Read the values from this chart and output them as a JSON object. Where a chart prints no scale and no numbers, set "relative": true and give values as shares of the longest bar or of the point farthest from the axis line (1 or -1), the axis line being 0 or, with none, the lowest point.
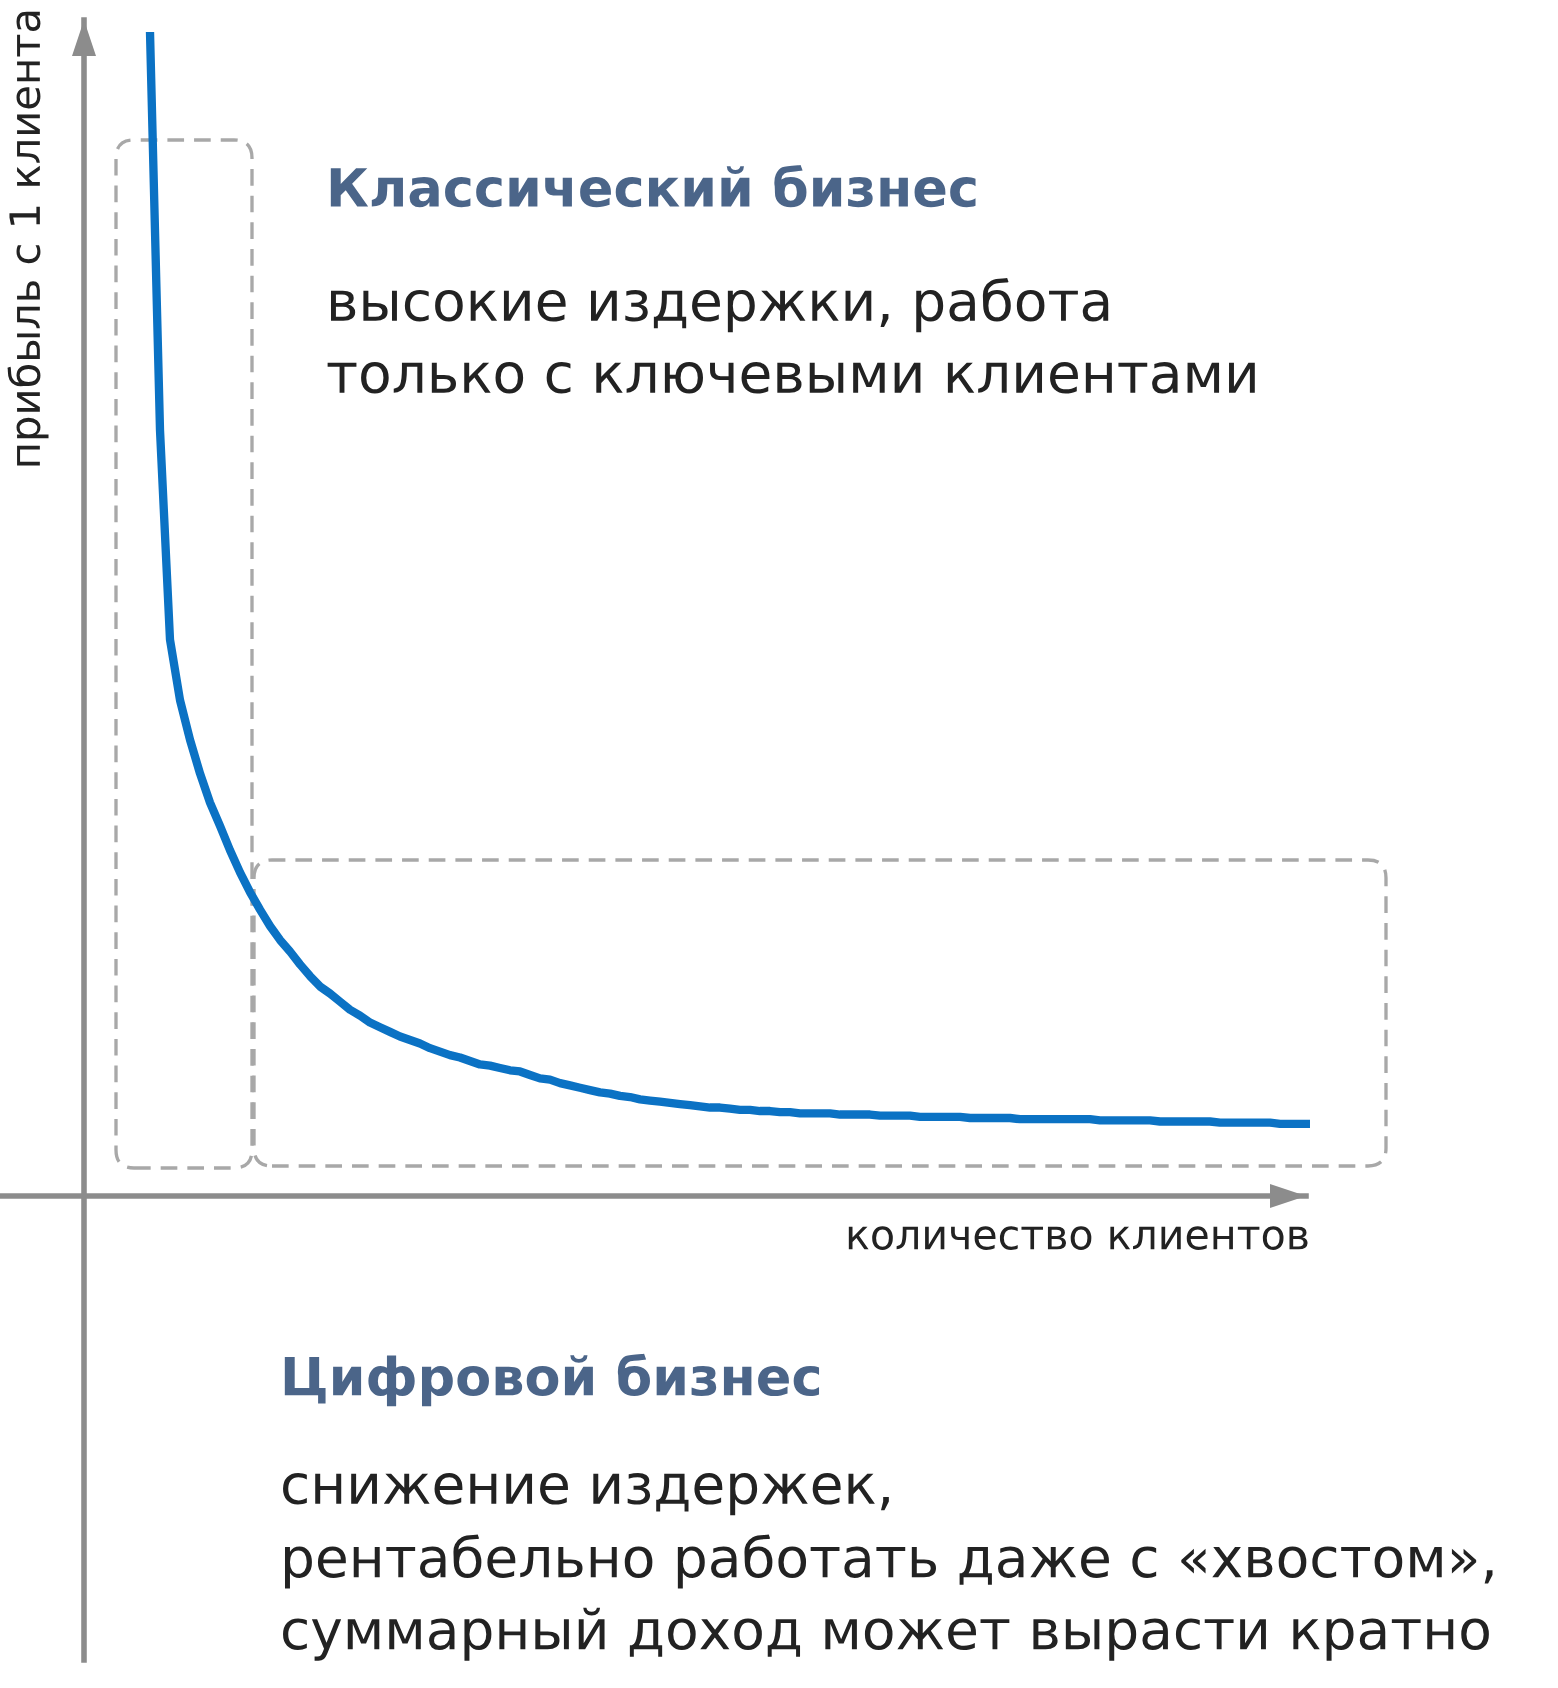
{
  "chart_data": {
    "type": "line",
    "relative": true,
    "xlabel": "количество клиентов",
    "ylabel": "прибыль с 1 клиента",
    "annotations": [
      "Классический бизнес",
      "высокие издержки, работа\nтолько с ключевыми клиентами",
      "Цифровой бизнес",
      "снижение издержек,\nрентабельно работать даже с «хвостом»,\nсуммарный доход может вырасти кратно"
    ],
    "categories": [
      null,
      null,
      null,
      null,
      null,
      null,
      null,
      null,
      null,
      null,
      null,
      null,
      null,
      null,
      null,
      null,
      null,
      null,
      null,
      null,
      null,
      null,
      null,
      null,
      null,
      null,
      null,
      null,
      null,
      null,
      null,
      null,
      null,
      null,
      null,
      null,
      null,
      null,
      null,
      null,
      null,
      null,
      null,
      null,
      null,
      null,
      null,
      null,
      null,
      null,
      null,
      null,
      null,
      null,
      null,
      null,
      null,
      null,
      null,
      null,
      null,
      null,
      null,
      null,
      null,
      null,
      null,
      null,
      null,
      null,
      null,
      null,
      null,
      null,
      null,
      null,
      null,
      null,
      null,
      null,
      null,
      null,
      null,
      null,
      null,
      null,
      null,
      null,
      null,
      null,
      null,
      null,
      null,
      null,
      null,
      null,
      null,
      null,
      null,
      null,
      null,
      null,
      null,
      null,
      null,
      null,
      null,
      null,
      null,
      null,
      null,
      null,
      null,
      null,
      null,
      null,
      null
    ],
    "series": [
      {
        "color": "#0b72c4",
        "values": [
          1.0,
          0.658,
          0.478,
          0.426,
          0.392,
          0.363,
          0.338,
          0.318,
          0.297,
          0.278,
          0.261,
          0.246,
          0.232,
          0.22,
          0.21,
          0.199,
          0.189,
          0.18,
          0.174,
          0.167,
          0.16,
          0.155,
          0.149,
          0.145,
          0.141,
          0.137,
          0.134,
          0.131,
          0.127,
          0.124,
          0.121,
          0.119,
          0.116,
          0.113,
          0.112,
          0.11,
          0.108,
          0.107,
          0.104,
          0.101,
          0.1,
          0.097,
          0.095,
          0.093,
          0.091,
          0.089,
          0.088,
          0.086,
          0.085,
          0.083,
          0.082,
          0.081,
          0.08,
          0.079,
          0.078,
          0.077,
          0.076,
          0.076,
          0.075,
          0.074,
          0.074,
          0.073,
          0.073,
          0.072,
          0.072,
          0.071,
          0.071,
          0.071,
          0.071,
          0.07,
          0.07,
          0.07,
          0.07,
          0.069,
          0.069,
          0.069,
          0.069,
          0.068,
          0.068,
          0.068,
          0.068,
          0.068,
          0.067,
          0.067,
          0.067,
          0.067,
          0.067,
          0.066,
          0.066,
          0.066,
          0.066,
          0.066,
          0.066,
          0.066,
          0.066,
          0.065,
          0.065,
          0.065,
          0.065,
          0.065,
          0.065,
          0.064,
          0.064,
          0.064,
          0.064,
          0.064,
          0.064,
          0.063,
          0.063,
          0.063,
          0.063,
          0.063,
          0.063,
          0.062,
          0.062,
          0.062,
          0.062
        ]
      }
    ]
  }
}
